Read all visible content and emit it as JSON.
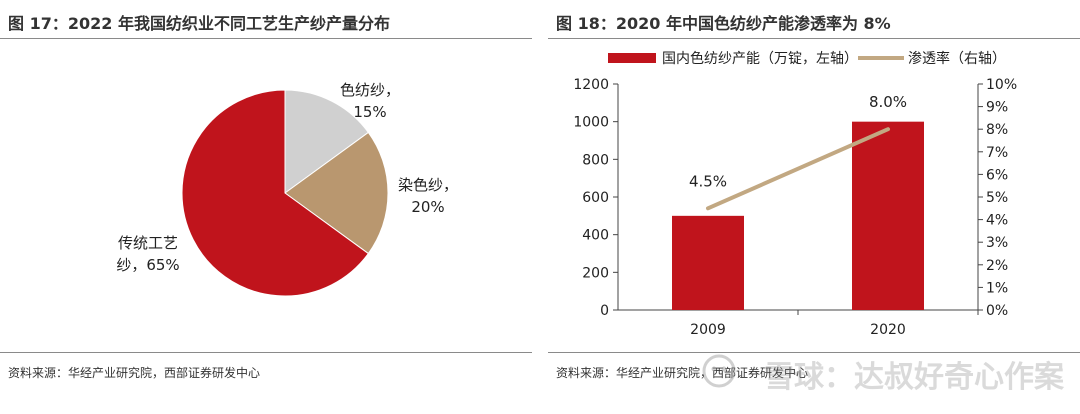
{
  "left": {
    "title": "图 17：2022 年我国纺织业不同工艺生产纱产量分布",
    "source": "资料来源：华经产业研究院，西部证券研发中心",
    "chart_data": {
      "type": "pie",
      "slices": [
        {
          "name": "色纺纱",
          "value": 15,
          "label_line1": "色纺纱，",
          "label_line2": "15%",
          "color": "#d0d0d0"
        },
        {
          "name": "染色纱",
          "value": 20,
          "label_line1": "染色纱，",
          "label_line2": "20%",
          "color": "#b9976f"
        },
        {
          "name": "传统工艺纱",
          "value": 65,
          "label_line1": "传统工艺",
          "label_line2": "纱，65%",
          "color": "#c0141c"
        }
      ]
    }
  },
  "right": {
    "title": "图 18：2020 年中国色纺纱产能渗透率为 8%",
    "source": "资料来源：华经产业研究院，西部证券研发中心",
    "chart_data": {
      "type": "bar",
      "categories": [
        "2009",
        "2020"
      ],
      "series": [
        {
          "name": "国内色纺纱产能（万锭，左轴）",
          "type": "bar",
          "axis": "left",
          "values": [
            500,
            1000
          ],
          "color": "#c0141c"
        },
        {
          "name": "渗透率（右轴）",
          "type": "line",
          "axis": "right",
          "values": [
            4.5,
            8.0
          ],
          "labels": [
            "4.5%",
            "8.0%"
          ],
          "color": "#c2a882"
        }
      ],
      "ylim_left": [
        0,
        1200
      ],
      "yticks_left": [
        "0",
        "200",
        "400",
        "600",
        "800",
        "1000",
        "1200"
      ],
      "ylim_right": [
        0,
        10
      ],
      "yticks_right": [
        "0%",
        "1%",
        "2%",
        "3%",
        "4%",
        "5%",
        "6%",
        "7%",
        "8%",
        "9%",
        "10%"
      ],
      "legend": "top"
    }
  },
  "watermark": {
    "text": "雪球：达叔好奇心作案"
  }
}
